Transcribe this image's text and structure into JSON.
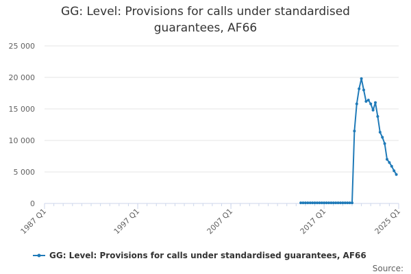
{
  "chart_data": {
    "type": "line",
    "title_lines": [
      "GG: Level: Provisions for calls under standardised",
      "guarantees, AF66"
    ],
    "xlabel": "",
    "ylabel": "",
    "ylim": [
      0,
      25000
    ],
    "yticks": [
      0,
      5000,
      10000,
      15000,
      20000,
      25000
    ],
    "ytick_labels": [
      "0",
      "5 000",
      "10 000",
      "15 000",
      "20 000",
      "25 000"
    ],
    "xlim": [
      1987.0,
      2025.0
    ],
    "xticks": [
      1987.0,
      1997.0,
      2007.0,
      2017.0,
      2025.0
    ],
    "xtick_labels": [
      "1987 Q1",
      "1997 Q1",
      "2007 Q1",
      "2017 Q1",
      "2025 Q1"
    ],
    "grid": "horizontal",
    "legend_position": "bottom",
    "series": [
      {
        "name": "GG: Level: Provisions for calls under standardised guarantees, AF66",
        "color": "#1f7ab8",
        "x": [
          2014.5,
          2014.75,
          2015.0,
          2015.25,
          2015.5,
          2015.75,
          2016.0,
          2016.25,
          2016.5,
          2016.75,
          2017.0,
          2017.25,
          2017.5,
          2017.75,
          2018.0,
          2018.25,
          2018.5,
          2018.75,
          2019.0,
          2019.25,
          2019.5,
          2019.75,
          2020.0,
          2020.25,
          2020.5,
          2020.75,
          2021.0,
          2021.25,
          2021.5,
          2021.75,
          2022.0,
          2022.25,
          2022.5,
          2022.75,
          2023.0,
          2023.25,
          2023.5,
          2023.75,
          2024.0,
          2024.25,
          2024.5,
          2024.75
        ],
        "y": [
          100,
          100,
          100,
          100,
          100,
          100,
          100,
          100,
          100,
          100,
          100,
          100,
          100,
          100,
          100,
          100,
          100,
          100,
          100,
          100,
          100,
          100,
          100,
          11500,
          15800,
          18200,
          19800,
          18000,
          16200,
          16400,
          15800,
          14800,
          16000,
          13800,
          11300,
          10500,
          9500,
          7000,
          6500,
          5900,
          5200,
          4600
        ]
      }
    ]
  },
  "footer": {
    "source_label": "Source:"
  }
}
